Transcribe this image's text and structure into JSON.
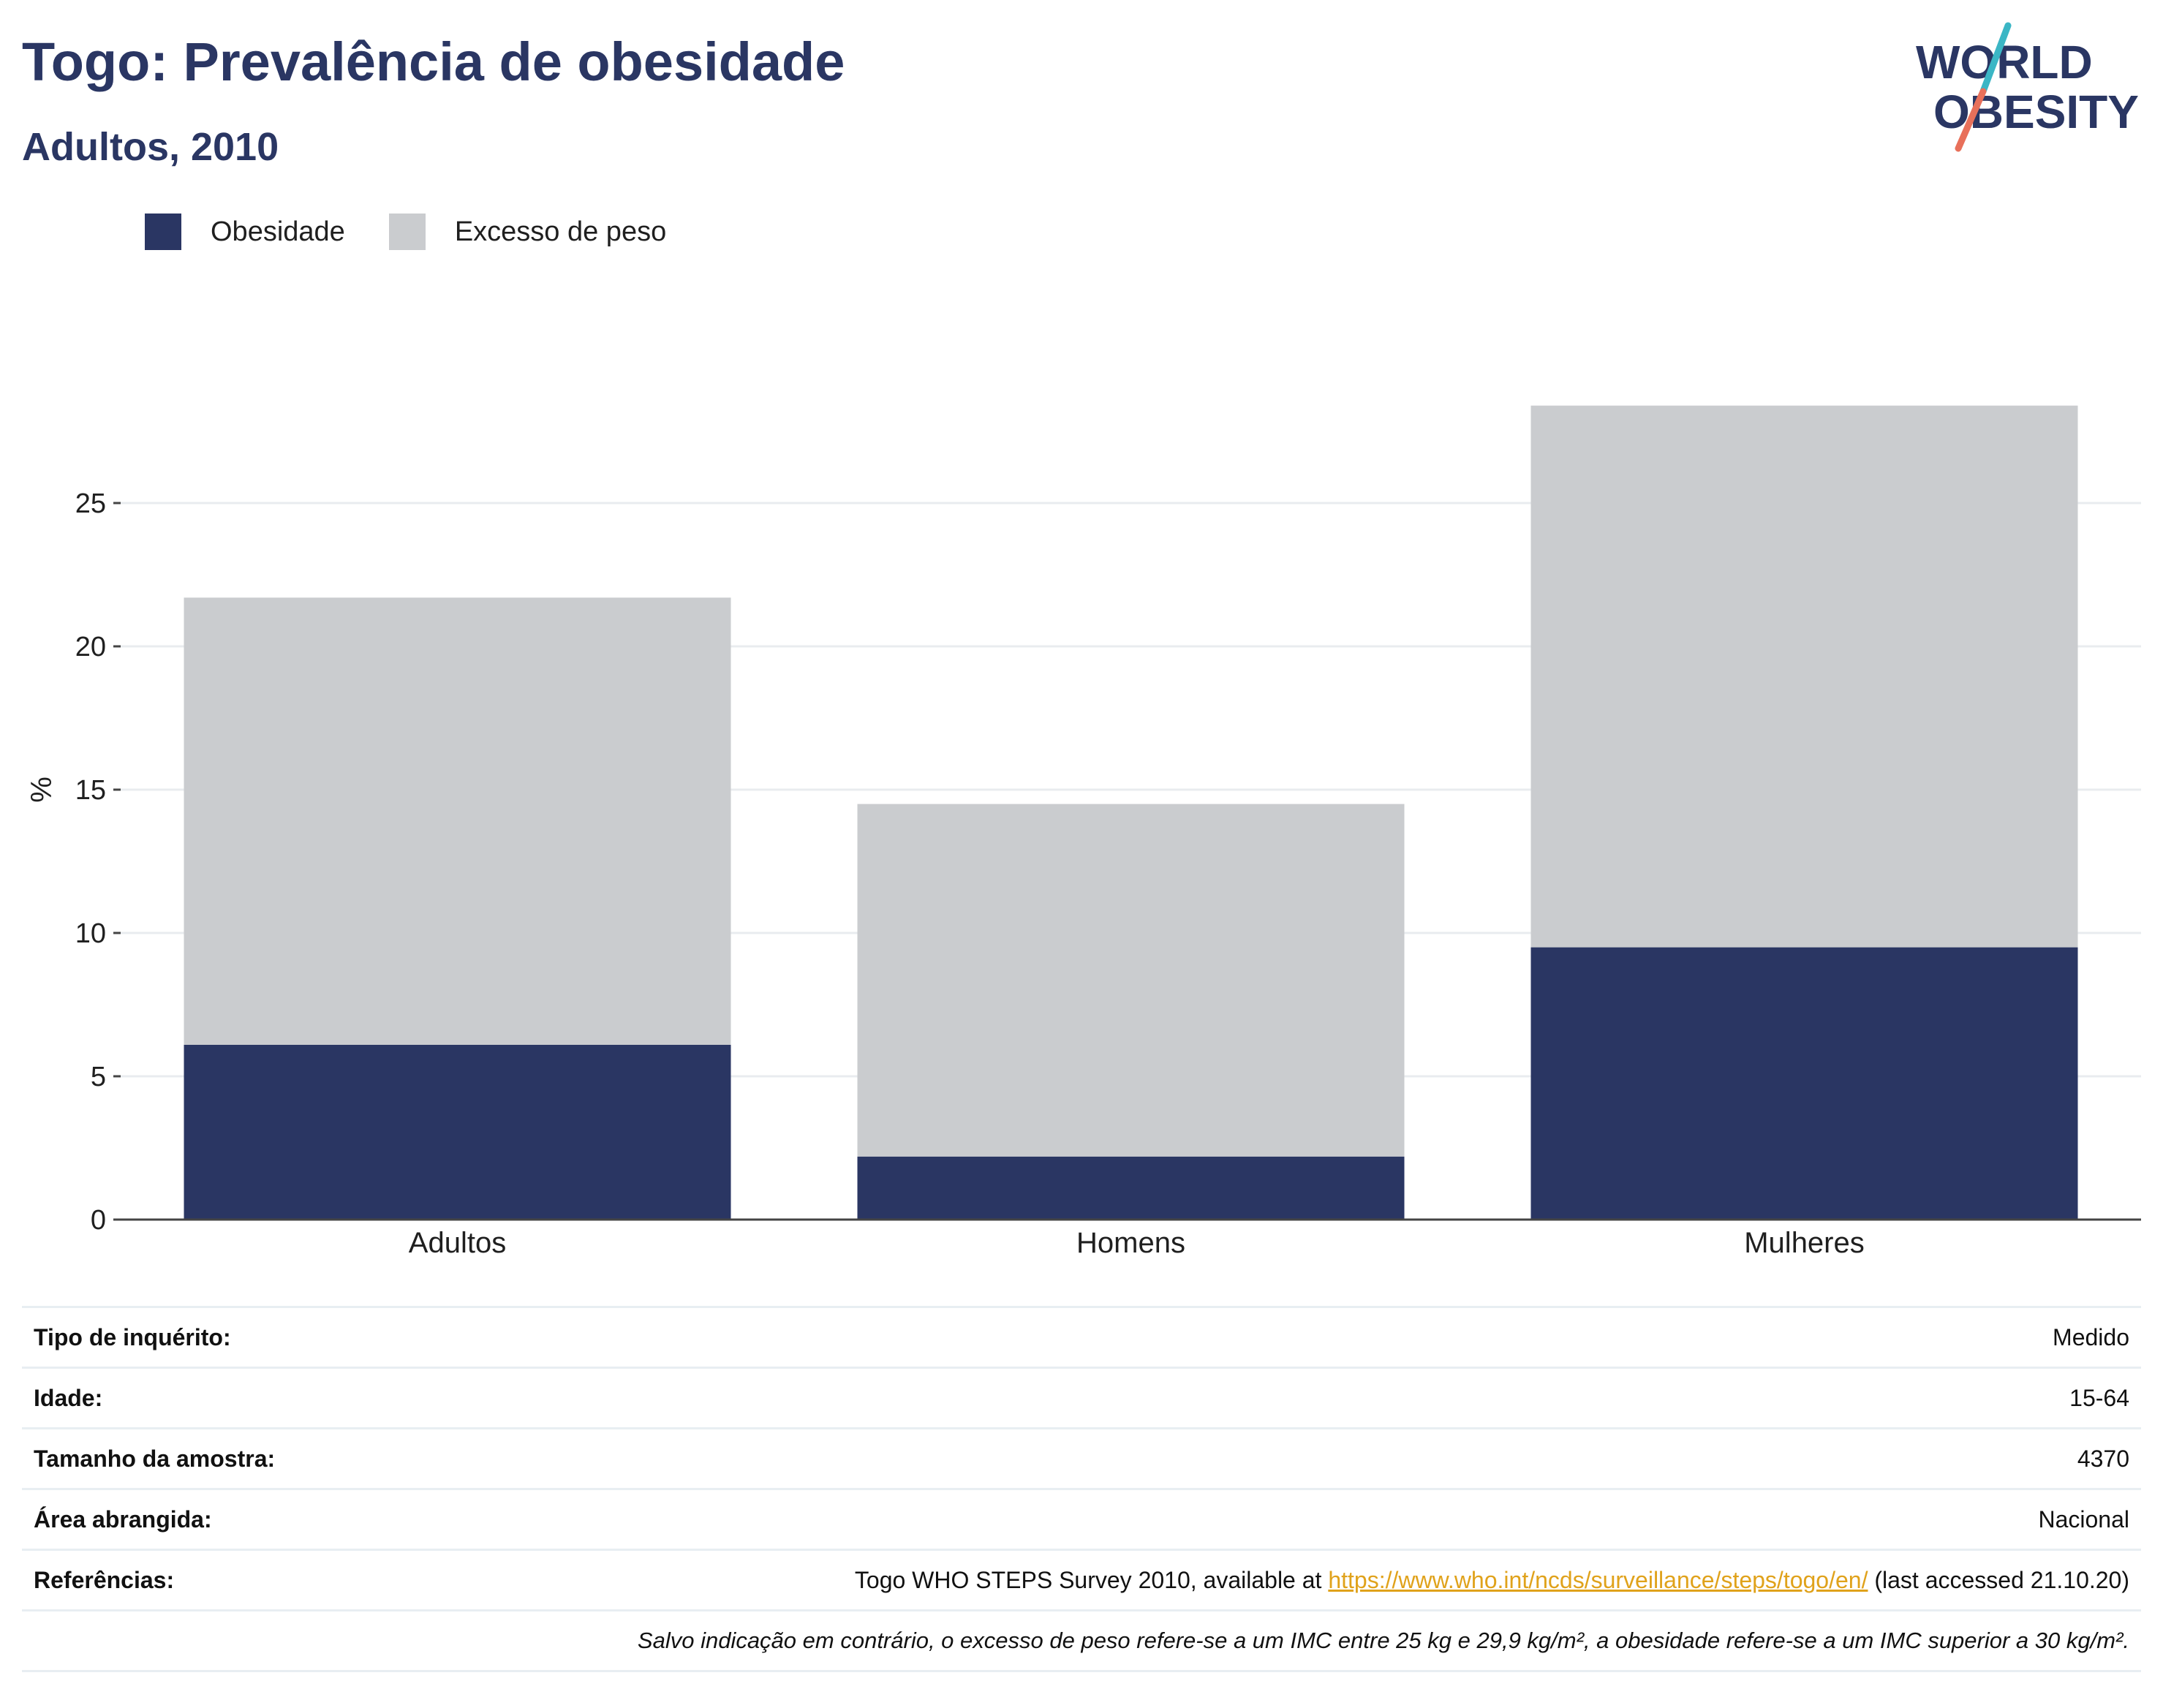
{
  "header": {
    "title": "Togo: Prevalência de obesidade",
    "subtitle": "Adultos, 2010"
  },
  "logo": {
    "line1": "WORLD",
    "line2": "OBESITY",
    "colors": {
      "text": "#2a3663",
      "slash_top": "#3bb6c5",
      "slash_bottom": "#e8705a"
    }
  },
  "legend": {
    "items": [
      {
        "label": "Obesidade",
        "color": "#2a3663"
      },
      {
        "label": "Excesso de peso",
        "color": "#cacccf"
      }
    ]
  },
  "chart_data": {
    "type": "bar",
    "stacked": true,
    "categories": [
      "Adultos",
      "Homens",
      "Mulheres"
    ],
    "series": [
      {
        "name": "Obesidade",
        "color": "#2a3663",
        "values": [
          6.1,
          2.2,
          9.5
        ]
      },
      {
        "name": "Excesso de peso",
        "color": "#cacccf",
        "values": [
          15.6,
          12.3,
          18.9
        ]
      }
    ],
    "ylabel": "%",
    "xlabel": "",
    "ylim": [
      0,
      30
    ],
    "yticks": [
      0,
      5,
      10,
      15,
      20,
      25
    ],
    "grid": true,
    "legend_position": "top-left"
  },
  "info": {
    "rows": [
      {
        "key": "Tipo de inquérito:",
        "value": "Medido"
      },
      {
        "key": "Idade:",
        "value": "15-64"
      },
      {
        "key": "Tamanho da amostra:",
        "value": "4370"
      },
      {
        "key": "Área abrangida:",
        "value": "Nacional"
      }
    ],
    "references": {
      "key": "Referências:",
      "prefix": "Togo WHO STEPS Survey 2010, available at ",
      "link": "https://www.who.int/ncds/surveillance/steps/togo/en/",
      "suffix": " (last accessed 21.10.20)"
    },
    "note": "Salvo indicação em contrário, o excesso de peso refere-se a um IMC entre 25 kg e 29,9 kg/m², a obesidade refere-se a um IMC superior a 30 kg/m²."
  }
}
